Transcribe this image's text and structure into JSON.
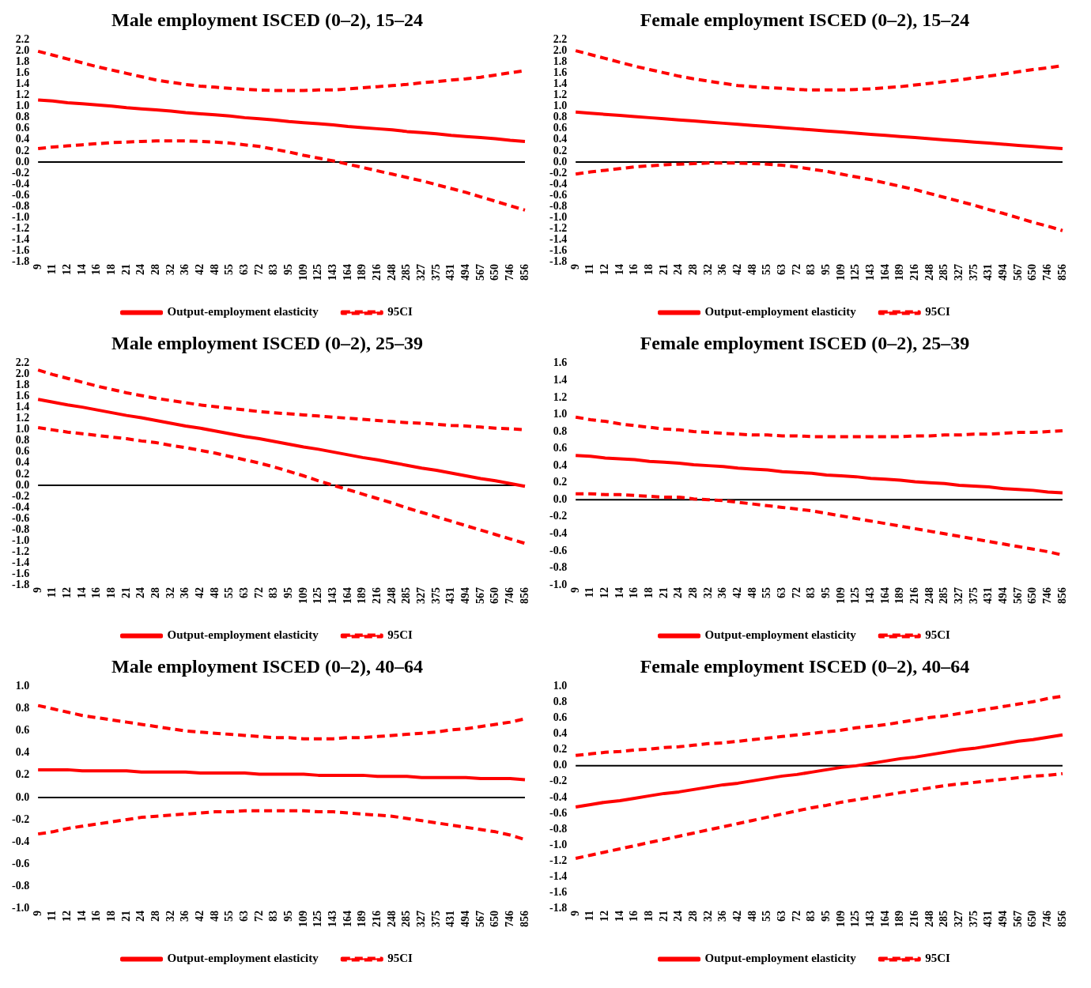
{
  "chart_data": [
    {
      "type": "line",
      "title": "Male employment ISCED (0–2), 15–24",
      "ref_lines": [
        {
          "axis": "y",
          "value": 0,
          "color": "#000000"
        }
      ],
      "categories": [
        "9",
        "11",
        "12",
        "14",
        "16",
        "18",
        "21",
        "24",
        "28",
        "32",
        "36",
        "42",
        "48",
        "55",
        "63",
        "72",
        "83",
        "95",
        "109",
        "125",
        "143",
        "164",
        "189",
        "216",
        "248",
        "285",
        "327",
        "375",
        "431",
        "494",
        "567",
        "650",
        "746",
        "856"
      ],
      "ylim": [
        -1.8,
        2.2
      ],
      "yticks": [
        2.2,
        {
          "value": 2,
          "label": "2.0"
        },
        1.8,
        1.6,
        1.4,
        1.2,
        {
          "value": 1,
          "label": "1.0"
        },
        0.8,
        0.6,
        0.4,
        0.2,
        {
          "value": 0,
          "label": "0.0"
        },
        -0.2,
        -0.4,
        -0.6,
        -0.8,
        {
          "value": -1,
          "label": "-1.0"
        },
        -1.2,
        -1.4,
        -1.6,
        -1.8
      ],
      "grid": false,
      "legend": "bottom",
      "series": [
        {
          "name": "Output-employment elasticity",
          "color": "#ff0000",
          "line_style": "solid",
          "values": [
            1.12,
            1.1,
            1.07,
            1.05,
            1.03,
            1.01,
            0.98,
            0.96,
            0.94,
            0.92,
            0.89,
            0.87,
            0.85,
            0.83,
            0.8,
            0.78,
            0.76,
            0.73,
            0.71,
            0.69,
            0.67,
            0.64,
            0.62,
            0.6,
            0.58,
            0.55,
            0.53,
            0.51,
            0.48,
            0.46,
            0.44,
            0.42,
            0.39,
            0.37
          ]
        },
        {
          "name": "95CI",
          "color": "#ff0000",
          "line_style": "dashed",
          "values": [
            2.0,
            1.93,
            1.86,
            1.79,
            1.72,
            1.66,
            1.6,
            1.54,
            1.48,
            1.44,
            1.4,
            1.37,
            1.35,
            1.33,
            1.31,
            1.3,
            1.29,
            1.29,
            1.29,
            1.3,
            1.3,
            1.32,
            1.34,
            1.36,
            1.38,
            1.4,
            1.43,
            1.45,
            1.48,
            1.5,
            1.53,
            1.57,
            1.61,
            1.65
          ]
        },
        {
          "color": "#ff0000",
          "line_style": "dashed",
          "values": [
            0.24,
            0.27,
            0.29,
            0.31,
            0.33,
            0.35,
            0.36,
            0.37,
            0.38,
            0.38,
            0.38,
            0.37,
            0.36,
            0.34,
            0.31,
            0.28,
            0.23,
            0.18,
            0.12,
            0.07,
            0.02,
            -0.04,
            -0.1,
            -0.16,
            -0.22,
            -0.28,
            -0.34,
            -0.41,
            -0.48,
            -0.55,
            -0.63,
            -0.71,
            -0.79,
            -0.87
          ]
        }
      ]
    },
    {
      "type": "line",
      "title": "Female employment ISCED (0–2), 15–24",
      "ref_lines": [
        {
          "axis": "y",
          "value": 0,
          "color": "#000000"
        }
      ],
      "categories": [
        "9",
        "11",
        "12",
        "14",
        "16",
        "18",
        "21",
        "24",
        "28",
        "32",
        "36",
        "42",
        "48",
        "55",
        "63",
        "72",
        "83",
        "95",
        "109",
        "125",
        "143",
        "164",
        "189",
        "216",
        "248",
        "285",
        "327",
        "375",
        "431",
        "494",
        "567",
        "650",
        "746",
        "856"
      ],
      "ylim": [
        -1.8,
        2.2
      ],
      "yticks": [
        2.2,
        {
          "value": 2,
          "label": "2.0"
        },
        1.8,
        1.6,
        1.4,
        1.2,
        {
          "value": 1,
          "label": "1.0"
        },
        0.8,
        0.6,
        0.4,
        0.2,
        {
          "value": 0,
          "label": "0.0"
        },
        -0.2,
        -0.4,
        -0.6,
        -0.8,
        {
          "value": -1,
          "label": "-1.0"
        },
        -1.2,
        -1.4,
        -1.6,
        -1.8
      ],
      "grid": false,
      "legend": "bottom",
      "series": [
        {
          "name": "Output-employment elasticity",
          "color": "#ff0000",
          "line_style": "solid",
          "values": [
            0.9,
            0.88,
            0.86,
            0.84,
            0.82,
            0.8,
            0.78,
            0.76,
            0.74,
            0.72,
            0.7,
            0.68,
            0.66,
            0.64,
            0.62,
            0.6,
            0.58,
            0.56,
            0.54,
            0.52,
            0.5,
            0.48,
            0.46,
            0.44,
            0.42,
            0.4,
            0.38,
            0.36,
            0.34,
            0.32,
            0.3,
            0.28,
            0.26,
            0.24
          ]
        },
        {
          "name": "95CI",
          "color": "#ff0000",
          "line_style": "dashed",
          "values": [
            2.01,
            1.94,
            1.87,
            1.8,
            1.73,
            1.67,
            1.61,
            1.55,
            1.5,
            1.46,
            1.42,
            1.38,
            1.36,
            1.34,
            1.33,
            1.31,
            1.3,
            1.3,
            1.3,
            1.31,
            1.32,
            1.34,
            1.36,
            1.39,
            1.42,
            1.45,
            1.48,
            1.52,
            1.55,
            1.59,
            1.63,
            1.67,
            1.7,
            1.74
          ]
        },
        {
          "color": "#ff0000",
          "line_style": "dashed",
          "values": [
            -0.22,
            -0.18,
            -0.15,
            -0.12,
            -0.09,
            -0.07,
            -0.05,
            -0.04,
            -0.03,
            -0.02,
            -0.02,
            -0.02,
            -0.03,
            -0.04,
            -0.06,
            -0.09,
            -0.13,
            -0.17,
            -0.22,
            -0.27,
            -0.32,
            -0.38,
            -0.44,
            -0.5,
            -0.57,
            -0.64,
            -0.71,
            -0.78,
            -0.86,
            -0.93,
            -1.01,
            -1.09,
            -1.16,
            -1.24
          ]
        }
      ]
    },
    {
      "type": "line",
      "title": "Male employment ISCED (0–2), 25–39",
      "ref_lines": [
        {
          "axis": "y",
          "value": 0,
          "color": "#000000"
        }
      ],
      "categories": [
        "9",
        "11",
        "12",
        "14",
        "16",
        "18",
        "21",
        "24",
        "28",
        "32",
        "36",
        "42",
        "48",
        "55",
        "63",
        "72",
        "83",
        "95",
        "109",
        "125",
        "143",
        "164",
        "189",
        "216",
        "248",
        "285",
        "327",
        "375",
        "431",
        "494",
        "567",
        "650",
        "746",
        "856"
      ],
      "ylim": [
        -1.8,
        2.2
      ],
      "yticks": [
        2.2,
        {
          "value": 2,
          "label": "2.0"
        },
        1.8,
        1.6,
        1.4,
        1.2,
        {
          "value": 1,
          "label": "1.0"
        },
        0.8,
        0.6,
        0.4,
        0.2,
        {
          "value": 0,
          "label": "0.0"
        },
        -0.2,
        -0.4,
        -0.6,
        -0.8,
        {
          "value": -1,
          "label": "-1.0"
        },
        -1.2,
        -1.4,
        -1.6,
        -1.8
      ],
      "grid": false,
      "legend": "bottom",
      "series": [
        {
          "name": "Output-employment elasticity",
          "color": "#ff0000",
          "line_style": "solid",
          "values": [
            1.55,
            1.5,
            1.45,
            1.41,
            1.36,
            1.31,
            1.26,
            1.22,
            1.17,
            1.12,
            1.07,
            1.03,
            0.98,
            0.93,
            0.88,
            0.84,
            0.79,
            0.74,
            0.69,
            0.65,
            0.6,
            0.55,
            0.5,
            0.46,
            0.41,
            0.36,
            0.31,
            0.27,
            0.22,
            0.17,
            0.12,
            0.08,
            0.03,
            -0.02
          ]
        },
        {
          "name": "95CI",
          "color": "#ff0000",
          "line_style": "dashed",
          "values": [
            2.08,
            2.0,
            1.93,
            1.86,
            1.79,
            1.73,
            1.67,
            1.62,
            1.57,
            1.53,
            1.49,
            1.45,
            1.42,
            1.39,
            1.36,
            1.33,
            1.31,
            1.29,
            1.27,
            1.25,
            1.23,
            1.21,
            1.19,
            1.17,
            1.15,
            1.13,
            1.12,
            1.1,
            1.08,
            1.07,
            1.05,
            1.03,
            1.02,
            1.0
          ]
        },
        {
          "color": "#ff0000",
          "line_style": "dashed",
          "values": [
            1.04,
            1.0,
            0.96,
            0.93,
            0.9,
            0.87,
            0.84,
            0.8,
            0.77,
            0.72,
            0.68,
            0.63,
            0.58,
            0.52,
            0.46,
            0.4,
            0.33,
            0.25,
            0.17,
            0.08,
            0.0,
            -0.08,
            -0.16,
            -0.24,
            -0.32,
            -0.41,
            -0.49,
            -0.57,
            -0.65,
            -0.73,
            -0.81,
            -0.89,
            -0.97,
            -1.05
          ]
        }
      ]
    },
    {
      "type": "line",
      "title": "Female employment ISCED (0–2), 25–39",
      "ref_lines": [
        {
          "axis": "y",
          "value": 0,
          "color": "#000000"
        }
      ],
      "categories": [
        "9",
        "11",
        "12",
        "14",
        "16",
        "18",
        "21",
        "24",
        "28",
        "32",
        "36",
        "42",
        "48",
        "55",
        "63",
        "72",
        "83",
        "95",
        "109",
        "125",
        "143",
        "164",
        "189",
        "216",
        "248",
        "285",
        "327",
        "375",
        "431",
        "494",
        "567",
        "650",
        "746",
        "856"
      ],
      "ylim": [
        -1.0,
        1.6
      ],
      "yticks": [
        1.6,
        1.4,
        1.2,
        {
          "value": 1,
          "label": "1.0"
        },
        0.8,
        0.6,
        0.4,
        0.2,
        {
          "value": 0,
          "label": "0.0"
        },
        -0.2,
        -0.4,
        -0.6,
        -0.8,
        {
          "value": -1,
          "label": "-1.0"
        }
      ],
      "grid": false,
      "legend": "bottom",
      "series": [
        {
          "name": "Output-employment elasticity",
          "color": "#ff0000",
          "line_style": "solid",
          "values": [
            0.52,
            0.51,
            0.49,
            0.48,
            0.47,
            0.45,
            0.44,
            0.43,
            0.41,
            0.4,
            0.39,
            0.37,
            0.36,
            0.35,
            0.33,
            0.32,
            0.31,
            0.29,
            0.28,
            0.27,
            0.25,
            0.24,
            0.23,
            0.21,
            0.2,
            0.19,
            0.17,
            0.16,
            0.15,
            0.13,
            0.12,
            0.11,
            0.09,
            0.08
          ]
        },
        {
          "name": "95CI",
          "color": "#ff0000",
          "line_style": "dashed",
          "values": [
            0.97,
            0.94,
            0.92,
            0.89,
            0.87,
            0.85,
            0.83,
            0.82,
            0.8,
            0.79,
            0.78,
            0.77,
            0.76,
            0.76,
            0.75,
            0.75,
            0.74,
            0.74,
            0.74,
            0.74,
            0.74,
            0.74,
            0.74,
            0.75,
            0.75,
            0.76,
            0.76,
            0.77,
            0.77,
            0.78,
            0.79,
            0.79,
            0.8,
            0.81
          ]
        },
        {
          "color": "#ff0000",
          "line_style": "dashed",
          "values": [
            0.07,
            0.07,
            0.06,
            0.06,
            0.05,
            0.04,
            0.03,
            0.03,
            0.01,
            0.0,
            -0.01,
            -0.03,
            -0.05,
            -0.07,
            -0.09,
            -0.11,
            -0.13,
            -0.16,
            -0.19,
            -0.22,
            -0.25,
            -0.28,
            -0.31,
            -0.34,
            -0.37,
            -0.4,
            -0.43,
            -0.46,
            -0.49,
            -0.52,
            -0.55,
            -0.58,
            -0.61,
            -0.65
          ]
        }
      ]
    },
    {
      "type": "line",
      "title": "Male employment ISCED (0–2), 40–64",
      "ref_lines": [
        {
          "axis": "y",
          "value": 0,
          "color": "#000000"
        }
      ],
      "categories": [
        "9",
        "11",
        "12",
        "14",
        "16",
        "18",
        "21",
        "24",
        "28",
        "32",
        "36",
        "42",
        "48",
        "55",
        "63",
        "72",
        "83",
        "95",
        "109",
        "125",
        "143",
        "164",
        "189",
        "216",
        "248",
        "285",
        "327",
        "375",
        "431",
        "494",
        "567",
        "650",
        "746",
        "856"
      ],
      "ylim": [
        -1.0,
        1.0
      ],
      "yticks": [
        {
          "value": 1,
          "label": "1.0"
        },
        0.8,
        0.6,
        0.4,
        0.2,
        {
          "value": 0,
          "label": "0.0"
        },
        -0.2,
        -0.4,
        -0.6,
        -0.8,
        {
          "value": -1,
          "label": "-1.0"
        }
      ],
      "grid": false,
      "legend": "bottom",
      "series": [
        {
          "name": "Output-employment elasticity",
          "color": "#ff0000",
          "line_style": "solid",
          "values": [
            0.25,
            0.25,
            0.25,
            0.24,
            0.24,
            0.24,
            0.24,
            0.23,
            0.23,
            0.23,
            0.23,
            0.22,
            0.22,
            0.22,
            0.22,
            0.21,
            0.21,
            0.21,
            0.21,
            0.2,
            0.2,
            0.2,
            0.2,
            0.19,
            0.19,
            0.19,
            0.18,
            0.18,
            0.18,
            0.18,
            0.17,
            0.17,
            0.17,
            0.16
          ]
        },
        {
          "name": "95CI",
          "color": "#ff0000",
          "line_style": "dashed",
          "values": [
            0.83,
            0.8,
            0.77,
            0.74,
            0.72,
            0.7,
            0.68,
            0.66,
            0.64,
            0.62,
            0.6,
            0.59,
            0.58,
            0.57,
            0.56,
            0.55,
            0.54,
            0.54,
            0.53,
            0.53,
            0.53,
            0.54,
            0.54,
            0.55,
            0.56,
            0.57,
            0.58,
            0.59,
            0.61,
            0.62,
            0.64,
            0.66,
            0.68,
            0.71
          ]
        },
        {
          "color": "#ff0000",
          "line_style": "dashed",
          "values": [
            -0.33,
            -0.31,
            -0.28,
            -0.26,
            -0.24,
            -0.22,
            -0.2,
            -0.18,
            -0.17,
            -0.16,
            -0.15,
            -0.14,
            -0.13,
            -0.13,
            -0.12,
            -0.12,
            -0.12,
            -0.12,
            -0.12,
            -0.13,
            -0.13,
            -0.14,
            -0.15,
            -0.16,
            -0.17,
            -0.19,
            -0.21,
            -0.23,
            -0.25,
            -0.27,
            -0.29,
            -0.31,
            -0.34,
            -0.38
          ]
        }
      ]
    },
    {
      "type": "line",
      "title": "Female employment ISCED (0–2), 40–64",
      "ref_lines": [
        {
          "axis": "y",
          "value": 0,
          "color": "#000000"
        }
      ],
      "categories": [
        "9",
        "11",
        "12",
        "14",
        "16",
        "18",
        "21",
        "24",
        "28",
        "32",
        "36",
        "42",
        "48",
        "55",
        "63",
        "72",
        "83",
        "95",
        "109",
        "125",
        "143",
        "164",
        "189",
        "216",
        "248",
        "285",
        "327",
        "375",
        "431",
        "494",
        "567",
        "650",
        "746",
        "856"
      ],
      "ylim": [
        -1.8,
        1.0
      ],
      "yticks": [
        {
          "value": 1,
          "label": "1.0"
        },
        0.8,
        0.6,
        0.4,
        0.2,
        {
          "value": 0,
          "label": "0.0"
        },
        -0.2,
        -0.4,
        -0.6,
        -0.8,
        {
          "value": -1,
          "label": "-1.0"
        },
        -1.2,
        -1.4,
        -1.6,
        -1.8
      ],
      "grid": false,
      "legend": "bottom",
      "series": [
        {
          "name": "Output-employment elasticity",
          "color": "#ff0000",
          "line_style": "solid",
          "values": [
            -0.52,
            -0.49,
            -0.46,
            -0.44,
            -0.41,
            -0.38,
            -0.35,
            -0.33,
            -0.3,
            -0.27,
            -0.24,
            -0.22,
            -0.19,
            -0.16,
            -0.13,
            -0.11,
            -0.08,
            -0.05,
            -0.02,
            0.0,
            0.03,
            0.06,
            0.09,
            0.11,
            0.14,
            0.17,
            0.2,
            0.22,
            0.25,
            0.28,
            0.31,
            0.33,
            0.36,
            0.39
          ]
        },
        {
          "name": "95CI",
          "color": "#ff0000",
          "line_style": "dashed",
          "values": [
            0.13,
            0.15,
            0.17,
            0.18,
            0.2,
            0.21,
            0.23,
            0.24,
            0.26,
            0.28,
            0.29,
            0.31,
            0.33,
            0.35,
            0.37,
            0.39,
            0.41,
            0.43,
            0.45,
            0.48,
            0.5,
            0.52,
            0.55,
            0.58,
            0.61,
            0.63,
            0.66,
            0.69,
            0.72,
            0.75,
            0.78,
            0.81,
            0.85,
            0.88
          ]
        },
        {
          "color": "#ff0000",
          "line_style": "dashed",
          "values": [
            -1.17,
            -1.13,
            -1.09,
            -1.05,
            -1.01,
            -0.97,
            -0.93,
            -0.89,
            -0.85,
            -0.81,
            -0.77,
            -0.73,
            -0.69,
            -0.65,
            -0.61,
            -0.57,
            -0.53,
            -0.5,
            -0.46,
            -0.43,
            -0.4,
            -0.37,
            -0.34,
            -0.31,
            -0.28,
            -0.25,
            -0.23,
            -0.21,
            -0.19,
            -0.17,
            -0.15,
            -0.13,
            -0.12,
            -0.1
          ]
        }
      ]
    }
  ]
}
